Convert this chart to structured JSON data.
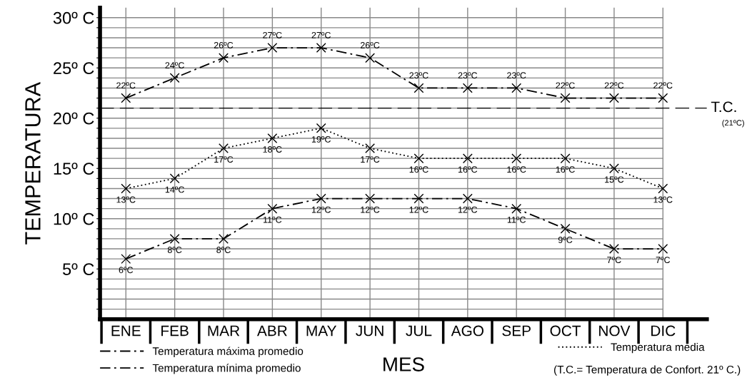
{
  "chart_data": {
    "type": "line",
    "ylabel": "TEMPERATURA",
    "xlabel": "MES",
    "categories": [
      "ENE",
      "FEB",
      "MAR",
      "ABR",
      "MAY",
      "JUN",
      "JUL",
      "AGO",
      "SEP",
      "OCT",
      "NOV",
      "DIC"
    ],
    "series": [
      {
        "name": "Temperatura máxima promedio",
        "color": "#000000",
        "line_style": "dashed",
        "values": [
          22,
          24,
          26,
          27,
          27,
          26,
          23,
          23,
          23,
          22,
          22,
          22
        ],
        "value_labels": [
          "22ºC",
          "24ºC",
          "26ºC",
          "27ºC",
          "27ºC",
          "26ºC",
          "23ºC",
          "23ºC",
          "23ºC",
          "22ºC",
          "22ºC",
          "22ºC"
        ]
      },
      {
        "name": "Temperatura mínima promedio",
        "color": "#000000",
        "line_style": "dashed",
        "values": [
          6,
          8,
          8,
          11,
          12,
          12,
          12,
          12,
          11,
          9,
          7,
          7
        ],
        "value_labels": [
          "6ºC",
          "8ºC",
          "8ºC",
          "11ºC",
          "12ºC",
          "12ºC",
          "12ºC",
          "12ºC",
          "11ºC",
          "9ºC",
          "7ºC",
          "7ºC"
        ]
      },
      {
        "name": "Temperatura media",
        "color": "#000000",
        "line_style": "dotted",
        "values": [
          13,
          14,
          17,
          18,
          19,
          17,
          16,
          16,
          16,
          16,
          15,
          13
        ],
        "value_labels": [
          "13ºC",
          "14ºC",
          "17ºC",
          "18ºC",
          "19ºC",
          "17ºC",
          "16ºC",
          "16ºC",
          "16ºC",
          "16ºC",
          "15ºC",
          "13ºC"
        ]
      }
    ],
    "ylim": [
      0,
      31
    ],
    "yticks": [
      {
        "value": 1,
        "label": null
      },
      {
        "value": 2,
        "label": null
      },
      {
        "value": 3,
        "label": null
      },
      {
        "value": 4,
        "label": null
      },
      {
        "value": 5,
        "label": "5º C"
      },
      {
        "value": 6,
        "label": null
      },
      {
        "value": 7,
        "label": null
      },
      {
        "value": 8,
        "label": null
      },
      {
        "value": 9,
        "label": null
      },
      {
        "value": 10,
        "label": "10º C"
      },
      {
        "value": 11,
        "label": null
      },
      {
        "value": 12,
        "label": null
      },
      {
        "value": 13,
        "label": null
      },
      {
        "value": 14,
        "label": null
      },
      {
        "value": 15,
        "label": "15º C"
      },
      {
        "value": 16,
        "label": null
      },
      {
        "value": 17,
        "label": null
      },
      {
        "value": 18,
        "label": null
      },
      {
        "value": 19,
        "label": null
      },
      {
        "value": 20,
        "label": "20º C"
      },
      {
        "value": 21,
        "label": null
      },
      {
        "value": 22,
        "label": null
      },
      {
        "value": 23,
        "label": null
      },
      {
        "value": 24,
        "label": null
      },
      {
        "value": 25,
        "label": "25º C"
      },
      {
        "value": 26,
        "label": null
      },
      {
        "value": 27,
        "label": null
      },
      {
        "value": 28,
        "label": null
      },
      {
        "value": 29,
        "label": null
      },
      {
        "value": 30,
        "label": "30º C"
      }
    ],
    "ref_lines": [
      {
        "axis": "y",
        "value": 21,
        "label": "T.C.",
        "color": "#000000",
        "line_style": "dashed"
      }
    ],
    "annotations": [
      "(21ºC)",
      "(T.C.= Temperatura de Confort. 21º C.)"
    ],
    "marker": "cross",
    "grid": true,
    "legend": "bottom"
  }
}
